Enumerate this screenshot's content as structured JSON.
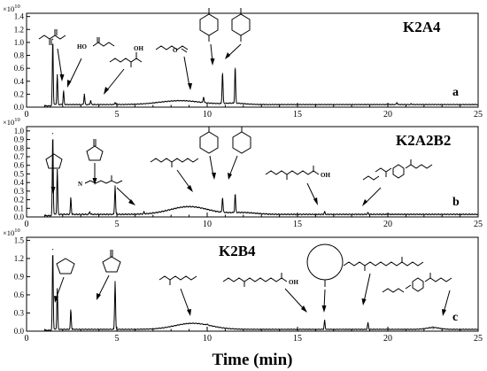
{
  "figure": {
    "xlabel": "Time (min)"
  },
  "chart_data": [
    {
      "type": "line",
      "panel_label": "K2A4",
      "letter": "a",
      "exponent_label": "×10",
      "exponent_power": "10",
      "xlim": [
        0,
        25
      ],
      "ylim": [
        0,
        1.45
      ],
      "x_ticks": [
        0,
        5,
        10,
        15,
        20,
        25
      ],
      "y_ticks": [
        0.0,
        0.2,
        0.4,
        0.6,
        0.8,
        1.0,
        1.2,
        1.4
      ],
      "y_tick_labels": [
        "0.0",
        "0.2",
        "0.4",
        "0.6",
        "0.8",
        "1.0",
        "1.2",
        "1.4"
      ],
      "baseline": 0.04,
      "broad_humps": [
        {
          "x": 8.5,
          "height": 0.06,
          "width": 1.6
        },
        {
          "x": 11.5,
          "height": 0.02,
          "width": 0.8
        }
      ],
      "peaks": [
        {
          "x": 1.45,
          "y": 1.05
        },
        {
          "x": 1.7,
          "y": 0.5
        },
        {
          "x": 2.05,
          "y": 0.25
        },
        {
          "x": 3.2,
          "y": 0.2
        },
        {
          "x": 3.55,
          "y": 0.1
        },
        {
          "x": 4.9,
          "y": 0.07
        },
        {
          "x": 9.8,
          "y": 0.13
        },
        {
          "x": 10.85,
          "y": 0.52
        },
        {
          "x": 11.55,
          "y": 0.6
        },
        {
          "x": 20.5,
          "y": 0.07
        },
        {
          "x": 21.3,
          "y": 0.05
        }
      ]
    },
    {
      "type": "line",
      "panel_label": "K2A2B2",
      "letter": "b",
      "exponent_label": "×10",
      "exponent_power": "10",
      "xlim": [
        0,
        25
      ],
      "ylim": [
        0,
        1.05
      ],
      "x_ticks": [
        0,
        5,
        10,
        15,
        20,
        25
      ],
      "y_ticks": [
        0.0,
        0.1,
        0.2,
        0.3,
        0.4,
        0.5,
        0.6,
        0.7,
        0.8,
        0.9,
        1.0
      ],
      "y_tick_labels": [
        "0.0",
        "0.1",
        "0.2",
        "0.3",
        "0.4",
        "0.5",
        "0.6",
        "0.7",
        "0.8",
        "0.9",
        "1.0"
      ],
      "baseline": 0.03,
      "broad_humps": [
        {
          "x": 9.0,
          "height": 0.09,
          "width": 1.5
        },
        {
          "x": 12.0,
          "height": 0.02,
          "width": 1.0
        }
      ],
      "peaks": [
        {
          "x": 1.45,
          "y": 0.97
        },
        {
          "x": 1.7,
          "y": 0.55
        },
        {
          "x": 2.45,
          "y": 0.22
        },
        {
          "x": 3.5,
          "y": 0.06
        },
        {
          "x": 4.9,
          "y": 0.36
        },
        {
          "x": 6.5,
          "y": 0.05
        },
        {
          "x": 10.85,
          "y": 0.2
        },
        {
          "x": 11.55,
          "y": 0.25
        },
        {
          "x": 16.5,
          "y": 0.06
        },
        {
          "x": 18.9,
          "y": 0.05
        }
      ]
    },
    {
      "type": "line",
      "panel_label": "K2B4",
      "letter": "c",
      "exponent_label": "×10",
      "exponent_power": "10",
      "xlim": [
        0,
        25
      ],
      "ylim": [
        0,
        1.55
      ],
      "x_ticks": [
        0,
        5,
        10,
        15,
        20,
        25
      ],
      "y_ticks": [
        0.0,
        0.3,
        0.6,
        0.9,
        1.2,
        1.5
      ],
      "y_tick_labels": [
        "0.0",
        "0.3",
        "0.6",
        "0.9",
        "1.2",
        "1.5"
      ],
      "baseline": 0.03,
      "broad_humps": [
        {
          "x": 9.2,
          "height": 0.1,
          "width": 1.4
        },
        {
          "x": 22.5,
          "height": 0.03,
          "width": 0.5
        }
      ],
      "peaks": [
        {
          "x": 1.45,
          "y": 1.35
        },
        {
          "x": 1.7,
          "y": 0.7
        },
        {
          "x": 2.45,
          "y": 0.35
        },
        {
          "x": 4.9,
          "y": 0.82
        },
        {
          "x": 10.0,
          "y": 0.05
        },
        {
          "x": 16.5,
          "y": 0.18
        },
        {
          "x": 18.9,
          "y": 0.14
        },
        {
          "x": 22.5,
          "y": 0.04
        }
      ]
    }
  ]
}
